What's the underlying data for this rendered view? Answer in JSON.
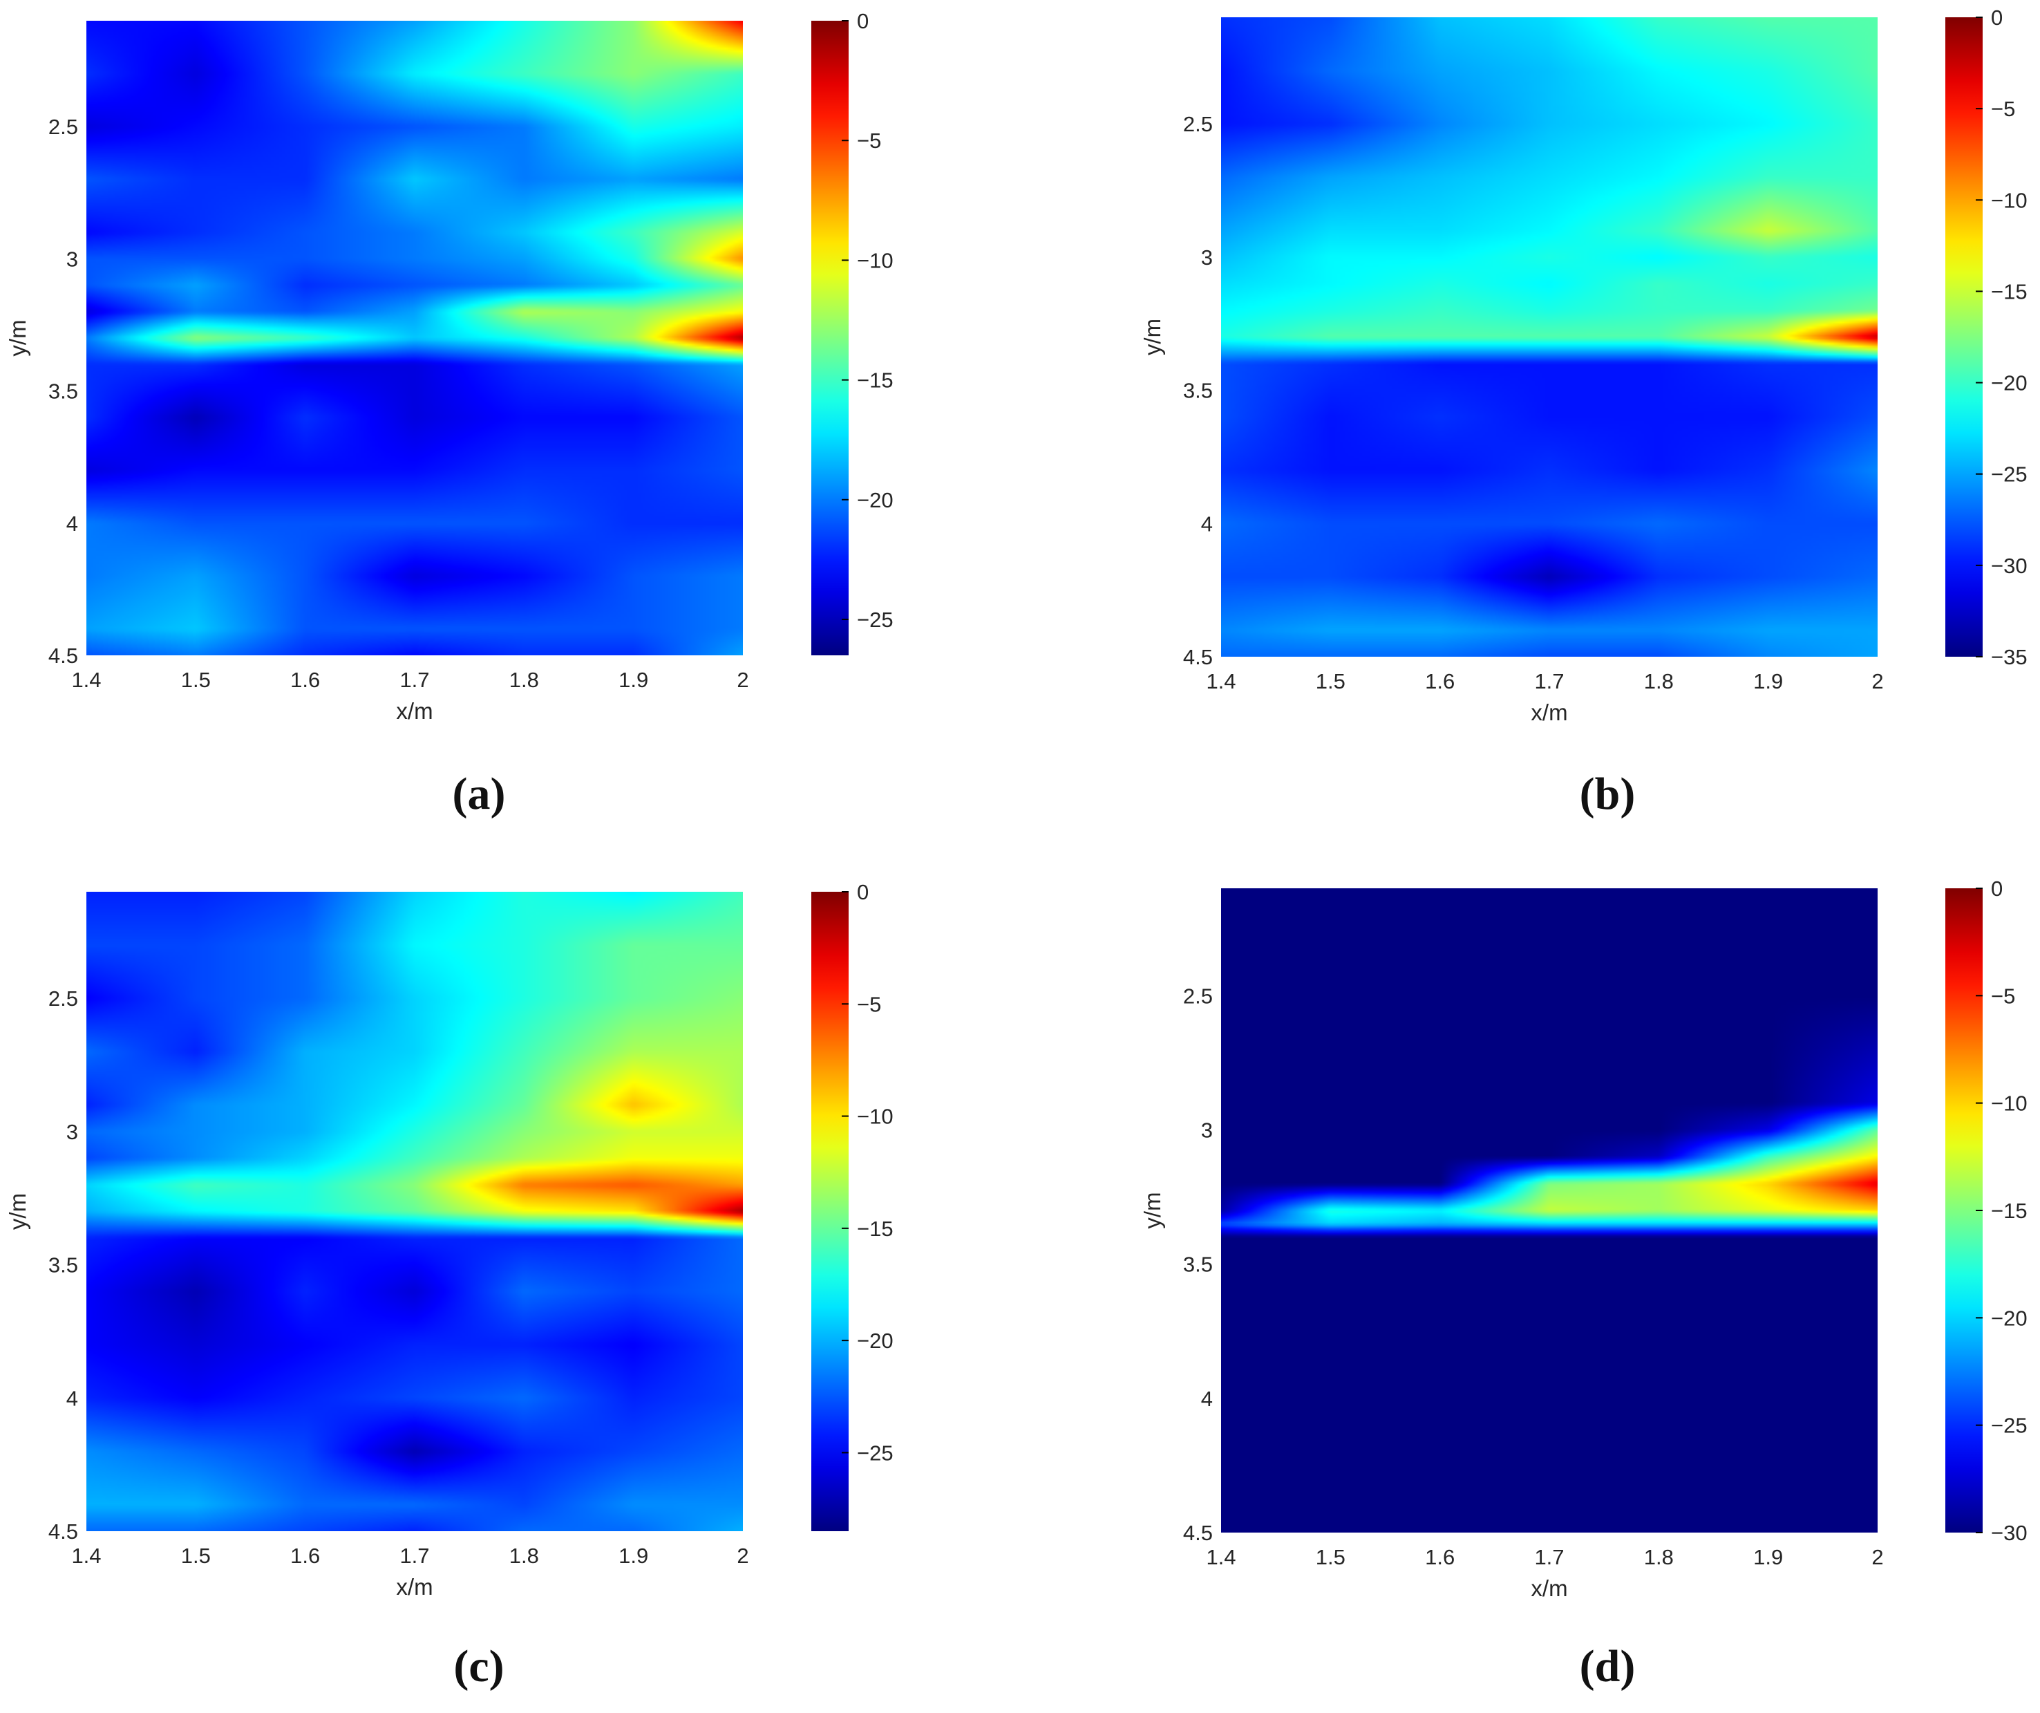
{
  "figure": {
    "panels": [
      {
        "label": "(a)"
      },
      {
        "label": "(b)"
      },
      {
        "label": "(c)"
      },
      {
        "label": "(d)"
      }
    ]
  },
  "colors": {
    "colormap": "jet",
    "background": "#ffffff",
    "axis_text": "#262626"
  },
  "chart_data": [
    {
      "type": "heatmap",
      "panel": "(a)",
      "xlabel": "x/m",
      "ylabel": "y/m",
      "xlim": [
        1.4,
        2.0
      ],
      "ylim": [
        2.1,
        4.5
      ],
      "y_reversed": true,
      "x_ticks": [
        "1.4",
        "1.5",
        "1.6",
        "1.7",
        "1.8",
        "1.9",
        "2"
      ],
      "y_ticks": [
        "2.5",
        "3",
        "3.5",
        "4",
        "4.5"
      ],
      "colorbar": {
        "range": [
          -26.5,
          0
        ],
        "ticks": [
          "0",
          "-5",
          "-10",
          "-15",
          "-20",
          "-25"
        ]
      },
      "x": [
        1.4,
        1.5,
        1.6,
        1.7,
        1.8,
        1.9,
        2.0
      ],
      "y": [
        2.1,
        2.3,
        2.5,
        2.7,
        2.9,
        3.0,
        3.1,
        3.2,
        3.3,
        3.4,
        3.6,
        3.8,
        4.0,
        4.2,
        4.4,
        4.5
      ],
      "values": [
        [
          -23,
          -23,
          -21,
          -19,
          -16,
          -13,
          -3
        ],
        [
          -22,
          -24,
          -21,
          -17,
          -15,
          -13,
          -15
        ],
        [
          -24,
          -23,
          -22,
          -21,
          -20,
          -16,
          -17
        ],
        [
          -21,
          -22,
          -22,
          -18,
          -20,
          -19,
          -20
        ],
        [
          -23,
          -22,
          -21,
          -20,
          -18,
          -15,
          -11
        ],
        [
          -21,
          -21,
          -21,
          -20,
          -19,
          -16,
          -7
        ],
        [
          -21,
          -19,
          -22,
          -21,
          -20,
          -18,
          -14
        ],
        [
          -24,
          -20,
          -21,
          -19,
          -12,
          -13,
          -10
        ],
        [
          -20,
          -13,
          -15,
          -18,
          -16,
          -12,
          -1
        ],
        [
          -22,
          -22,
          -24,
          -24,
          -22,
          -21,
          -19
        ],
        [
          -22,
          -25,
          -22,
          -24,
          -23,
          -23,
          -21
        ],
        [
          -24,
          -23,
          -23,
          -23,
          -22,
          -22,
          -21
        ],
        [
          -20,
          -21,
          -21,
          -21,
          -21,
          -22,
          -22
        ],
        [
          -20,
          -19,
          -21,
          -24,
          -23,
          -21,
          -20
        ],
        [
          -19,
          -18,
          -21,
          -21,
          -21,
          -21,
          -20
        ],
        [
          -21,
          -20,
          -22,
          -23,
          -22,
          -22,
          -19
        ]
      ]
    },
    {
      "type": "heatmap",
      "panel": "(b)",
      "xlabel": "x/m",
      "ylabel": "y/m",
      "xlim": [
        1.4,
        2.0
      ],
      "ylim": [
        2.1,
        4.5
      ],
      "y_reversed": true,
      "x_ticks": [
        "1.4",
        "1.5",
        "1.6",
        "1.7",
        "1.8",
        "1.9",
        "2"
      ],
      "y_ticks": [
        "2.5",
        "3",
        "3.5",
        "4",
        "4.5"
      ],
      "colorbar": {
        "range": [
          -35,
          0
        ],
        "ticks": [
          "0",
          "-5",
          "-10",
          "-15",
          "-20",
          "-25",
          "-30",
          "-35"
        ]
      },
      "x": [
        1.4,
        1.5,
        1.6,
        1.7,
        1.8,
        1.9,
        2.0
      ],
      "y": [
        2.1,
        2.3,
        2.5,
        2.7,
        2.9,
        3.0,
        3.1,
        3.2,
        3.3,
        3.4,
        3.6,
        3.8,
        4.0,
        4.2,
        4.4,
        4.5
      ],
      "values": [
        [
          -29,
          -28,
          -24,
          -23,
          -20,
          -19,
          -19
        ],
        [
          -30,
          -27,
          -25,
          -24,
          -22,
          -21,
          -19
        ],
        [
          -30,
          -29,
          -26,
          -24,
          -23,
          -22,
          -20
        ],
        [
          -27,
          -25,
          -24,
          -23,
          -22,
          -20,
          -20
        ],
        [
          -25,
          -23,
          -23,
          -22,
          -20,
          -15,
          -19
        ],
        [
          -24,
          -22,
          -22,
          -21,
          -22,
          -20,
          -21
        ],
        [
          -23,
          -22,
          -21,
          -22,
          -20,
          -21,
          -20
        ],
        [
          -22,
          -21,
          -20,
          -21,
          -20,
          -20,
          -18
        ],
        [
          -21,
          -19,
          -19,
          -19,
          -19,
          -15,
          -2
        ],
        [
          -28,
          -29,
          -30,
          -30,
          -30,
          -29,
          -29
        ],
        [
          -28,
          -30,
          -29,
          -30,
          -30,
          -30,
          -28
        ],
        [
          -29,
          -30,
          -30,
          -29,
          -30,
          -29,
          -26
        ],
        [
          -27,
          -28,
          -28,
          -28,
          -27,
          -28,
          -28
        ],
        [
          -28,
          -28,
          -29,
          -33,
          -29,
          -28,
          -27
        ],
        [
          -26,
          -25,
          -25,
          -26,
          -26,
          -25,
          -25
        ],
        [
          -27,
          -27,
          -27,
          -28,
          -28,
          -26,
          -25
        ]
      ]
    },
    {
      "type": "heatmap",
      "panel": "(c)",
      "xlabel": "x/m",
      "ylabel": "y/m",
      "xlim": [
        1.4,
        2.0
      ],
      "ylim": [
        2.1,
        4.5
      ],
      "y_reversed": true,
      "x_ticks": [
        "1.4",
        "1.5",
        "1.6",
        "1.7",
        "1.8",
        "1.9",
        "2"
      ],
      "y_ticks": [
        "2.5",
        "3",
        "3.5",
        "4",
        "4.5"
      ],
      "colorbar": {
        "range": [
          -28.5,
          0
        ],
        "ticks": [
          "0",
          "-5",
          "-10",
          "-15",
          "-20",
          "-25"
        ]
      },
      "x": [
        1.4,
        1.5,
        1.6,
        1.7,
        1.8,
        1.9,
        2.0
      ],
      "y": [
        2.1,
        2.3,
        2.5,
        2.7,
        2.9,
        3.0,
        3.1,
        3.2,
        3.3,
        3.4,
        3.6,
        3.8,
        4.0,
        4.2,
        4.4,
        4.5
      ],
      "values": [
        [
          -24,
          -24,
          -23,
          -19,
          -17,
          -18,
          -16
        ],
        [
          -23,
          -23,
          -22,
          -18,
          -17,
          -15,
          -15
        ],
        [
          -25,
          -23,
          -22,
          -19,
          -17,
          -15,
          -14
        ],
        [
          -22,
          -24,
          -20,
          -19,
          -16,
          -13,
          -13
        ],
        [
          -24,
          -21,
          -20,
          -18,
          -15,
          -9,
          -13
        ],
        [
          -22,
          -21,
          -20,
          -17,
          -14,
          -12,
          -12
        ],
        [
          -23,
          -21,
          -19,
          -16,
          -13,
          -11,
          -11
        ],
        [
          -19,
          -16,
          -17,
          -14,
          -7,
          -6,
          -8
        ],
        [
          -20,
          -18,
          -17,
          -15,
          -11,
          -10,
          -1
        ],
        [
          -24,
          -25,
          -25,
          -24,
          -24,
          -24,
          -22
        ],
        [
          -25,
          -27,
          -24,
          -26,
          -22,
          -23,
          -22
        ],
        [
          -25,
          -26,
          -25,
          -24,
          -24,
          -25,
          -23
        ],
        [
          -24,
          -25,
          -24,
          -23,
          -22,
          -24,
          -23
        ],
        [
          -21,
          -22,
          -23,
          -27,
          -24,
          -23,
          -22
        ],
        [
          -20,
          -20,
          -22,
          -22,
          -23,
          -21,
          -21
        ],
        [
          -22,
          -22,
          -23,
          -24,
          -22,
          -22,
          -20
        ]
      ]
    },
    {
      "type": "heatmap",
      "panel": "(d)",
      "xlabel": "x/m",
      "ylabel": "y/m",
      "xlim": [
        1.4,
        2.0
      ],
      "ylim": [
        2.1,
        4.5
      ],
      "y_reversed": true,
      "x_ticks": [
        "1.4",
        "1.5",
        "1.6",
        "1.7",
        "1.8",
        "1.9",
        "2"
      ],
      "y_ticks": [
        "2.5",
        "3",
        "3.5",
        "4",
        "4.5"
      ],
      "colorbar": {
        "range": [
          -30,
          0
        ],
        "ticks": [
          "0",
          "-5",
          "-10",
          "-15",
          "-20",
          "-25",
          "-30"
        ]
      },
      "x": [
        1.4,
        1.5,
        1.6,
        1.7,
        1.8,
        1.9,
        2.0
      ],
      "y": [
        2.1,
        2.5,
        2.9,
        3.0,
        3.1,
        3.2,
        3.3,
        3.35,
        3.4,
        3.8,
        4.2,
        4.5
      ],
      "values": [
        [
          -30,
          -30,
          -30,
          -30,
          -30,
          -30,
          -30
        ],
        [
          -30,
          -30,
          -30,
          -30,
          -30,
          -30,
          -30
        ],
        [
          -30,
          -30,
          -30,
          -30,
          -30,
          -30,
          -27
        ],
        [
          -30,
          -30,
          -30,
          -30,
          -30,
          -27,
          -16
        ],
        [
          -30,
          -30,
          -30,
          -30,
          -28,
          -17,
          -11
        ],
        [
          -30,
          -30,
          -30,
          -15,
          -14,
          -10,
          -3
        ],
        [
          -29,
          -18,
          -19,
          -13,
          -14,
          -12,
          -10
        ],
        [
          -24,
          -20,
          -21,
          -20,
          -20,
          -20,
          -20
        ],
        [
          -30,
          -30,
          -30,
          -30,
          -30,
          -30,
          -30
        ],
        [
          -30,
          -30,
          -30,
          -30,
          -30,
          -30,
          -30
        ],
        [
          -30,
          -30,
          -30,
          -30,
          -30,
          -30,
          -30
        ],
        [
          -30,
          -30,
          -30,
          -30,
          -30,
          -30,
          -30
        ]
      ]
    }
  ]
}
